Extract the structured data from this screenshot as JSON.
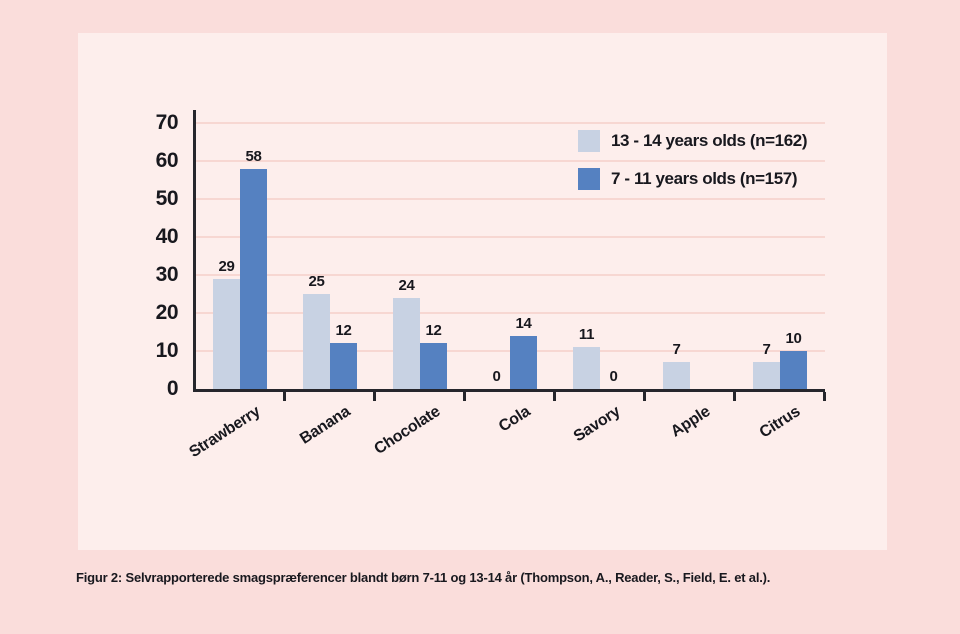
{
  "figure": {
    "caption": "Figur 2: Selvrapporterede smagspræferencer blandt børn 7-11 og 13-14 år (Thompson, A., Reader, S., Field, E. et al.)."
  },
  "colors": {
    "outer_background": "#fadddb",
    "panel_background": "#fdeeec",
    "gridline": "#f7d7d2",
    "axis": "#26262c",
    "text": "#18181e",
    "series_13_14": "#c8d2e3",
    "series_7_11": "#5581c1"
  },
  "chart_data": {
    "type": "bar",
    "title": "",
    "xlabel": "",
    "ylabel": "",
    "categories": [
      "Strawberry",
      "Banana",
      "Chocolate",
      "Cola",
      "Savory",
      "Apple",
      "Citrus"
    ],
    "series": [
      {
        "name": "13 - 14 years olds (n=162)",
        "color": "#c8d2e3",
        "values": [
          29,
          25,
          24,
          0,
          11,
          7,
          7
        ]
      },
      {
        "name": "7 - 11 years olds (n=157)",
        "color": "#5581c1",
        "values": [
          58,
          12,
          12,
          14,
          0,
          null,
          10
        ]
      }
    ],
    "ylim": [
      0,
      70
    ],
    "yticks": [
      0,
      10,
      20,
      30,
      40,
      50,
      60,
      70
    ],
    "grid": "horizontal",
    "legend_position": "top-right",
    "value_labels": true,
    "missing_values_note": "Apple has no bar for 7 - 11 years olds"
  }
}
